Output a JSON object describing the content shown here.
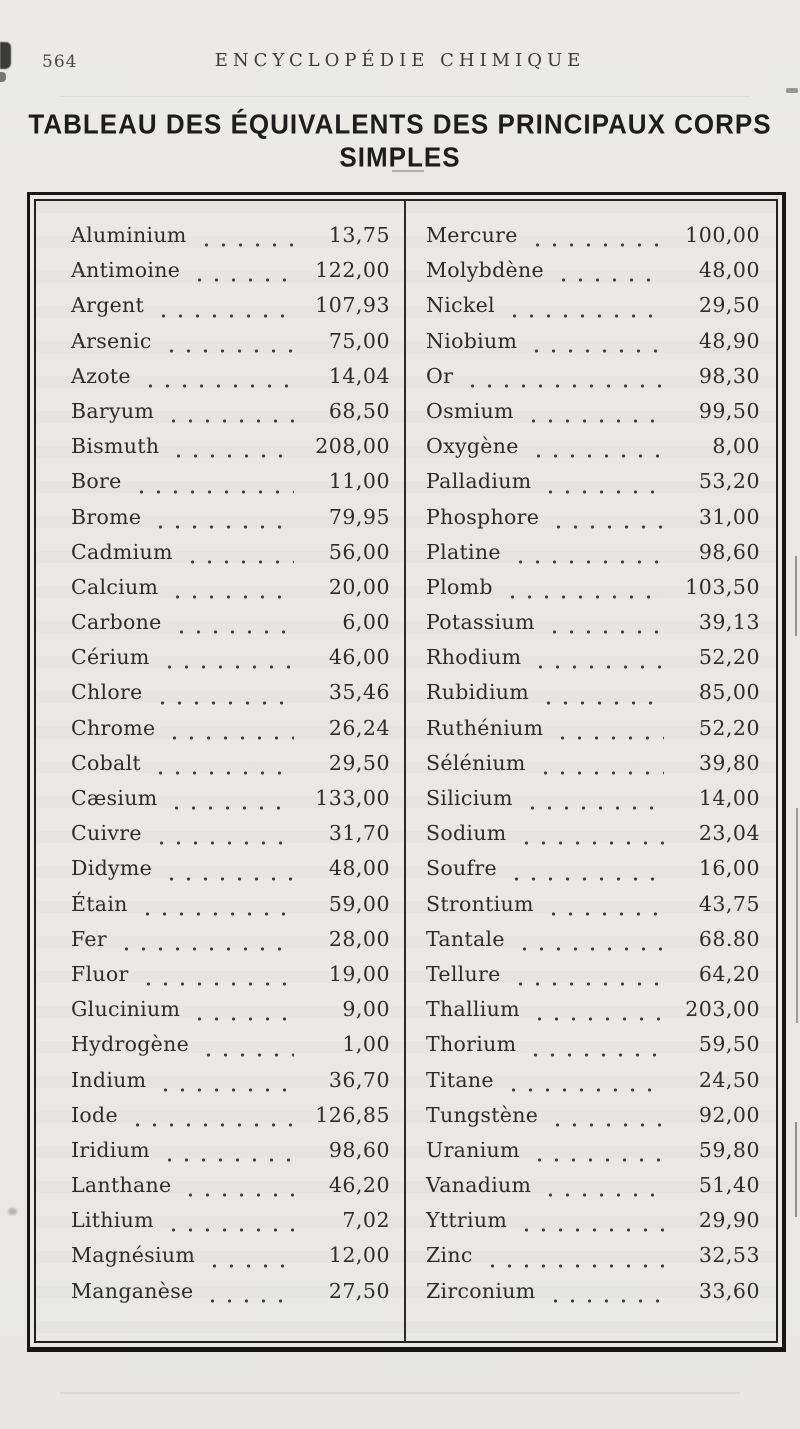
{
  "page": {
    "page_number": "564",
    "running_head": "ENCYCLOPÉDIE CHIMIQUE",
    "title": "TABLEAU DES ÉQUIVALENTS DES PRINCIPAUX CORPS SIMPLES"
  },
  "table": {
    "columns": [
      {
        "rows": [
          {
            "name": "Aluminium",
            "value": "13,75"
          },
          {
            "name": "Antimoine",
            "value": "122,00"
          },
          {
            "name": "Argent",
            "value": "107,93"
          },
          {
            "name": "Arsenic",
            "value": "75,00"
          },
          {
            "name": "Azote",
            "value": "14,04"
          },
          {
            "name": "Baryum",
            "value": "68,50"
          },
          {
            "name": "Bismuth",
            "value": "208,00"
          },
          {
            "name": "Bore",
            "value": "11,00"
          },
          {
            "name": "Brome",
            "value": "79,95"
          },
          {
            "name": "Cadmium",
            "value": "56,00"
          },
          {
            "name": "Calcium",
            "value": "20,00"
          },
          {
            "name": "Carbone",
            "value": "6,00"
          },
          {
            "name": "Cérium",
            "value": "46,00"
          },
          {
            "name": "Chlore",
            "value": "35,46"
          },
          {
            "name": "Chrome",
            "value": "26,24"
          },
          {
            "name": "Cobalt",
            "value": "29,50"
          },
          {
            "name": "Cæsium",
            "value": "133,00"
          },
          {
            "name": "Cuivre",
            "value": "31,70"
          },
          {
            "name": "Didyme",
            "value": "48,00"
          },
          {
            "name": "Étain",
            "value": "59,00"
          },
          {
            "name": "Fer",
            "value": "28,00"
          },
          {
            "name": "Fluor",
            "value": "19,00"
          },
          {
            "name": "Glucinium",
            "value": "9,00"
          },
          {
            "name": "Hydrogène",
            "value": "1,00"
          },
          {
            "name": "Indium",
            "value": "36,70"
          },
          {
            "name": "Iode",
            "value": "126,85"
          },
          {
            "name": "Iridium",
            "value": "98,60"
          },
          {
            "name": "Lanthane",
            "value": "46,20"
          },
          {
            "name": "Lithium",
            "value": "7,02"
          },
          {
            "name": "Magnésium",
            "value": "12,00"
          },
          {
            "name": "Manganèse",
            "value": "27,50"
          }
        ]
      },
      {
        "rows": [
          {
            "name": "Mercure",
            "value": "100,00"
          },
          {
            "name": "Molybdène",
            "value": "48,00"
          },
          {
            "name": "Nickel",
            "value": "29,50"
          },
          {
            "name": "Niobium",
            "value": "48,90"
          },
          {
            "name": "Or",
            "value": "98,30"
          },
          {
            "name": "Osmium",
            "value": "99,50"
          },
          {
            "name": "Oxygène",
            "value": "8,00"
          },
          {
            "name": "Palladium",
            "value": "53,20"
          },
          {
            "name": "Phosphore",
            "value": "31,00"
          },
          {
            "name": "Platine",
            "value": "98,60"
          },
          {
            "name": "Plomb",
            "value": "103,50"
          },
          {
            "name": "Potassium",
            "value": "39,13"
          },
          {
            "name": "Rhodium",
            "value": "52,20"
          },
          {
            "name": "Rubidium",
            "value": "85,00"
          },
          {
            "name": "Ruthénium",
            "value": "52,20"
          },
          {
            "name": "Sélénium",
            "value": "39,80"
          },
          {
            "name": "Silicium",
            "value": "14,00"
          },
          {
            "name": "Sodium",
            "value": "23,04"
          },
          {
            "name": "Soufre",
            "value": "16,00"
          },
          {
            "name": "Strontium",
            "value": "43,75"
          },
          {
            "name": "Tantale",
            "value": "68.80"
          },
          {
            "name": "Tellure",
            "value": "64,20"
          },
          {
            "name": "Thallium",
            "value": "203,00"
          },
          {
            "name": "Thorium",
            "value": "59,50"
          },
          {
            "name": "Titane",
            "value": "24,50"
          },
          {
            "name": "Tungstène",
            "value": "92,00"
          },
          {
            "name": "Uranium",
            "value": "59,80"
          },
          {
            "name": "Vanadium",
            "value": "51,40"
          },
          {
            "name": "Yttrium",
            "value": "29,90"
          },
          {
            "name": "Zinc",
            "value": "32,53"
          },
          {
            "name": "Zirconium",
            "value": "33,60"
          }
        ]
      }
    ]
  }
}
